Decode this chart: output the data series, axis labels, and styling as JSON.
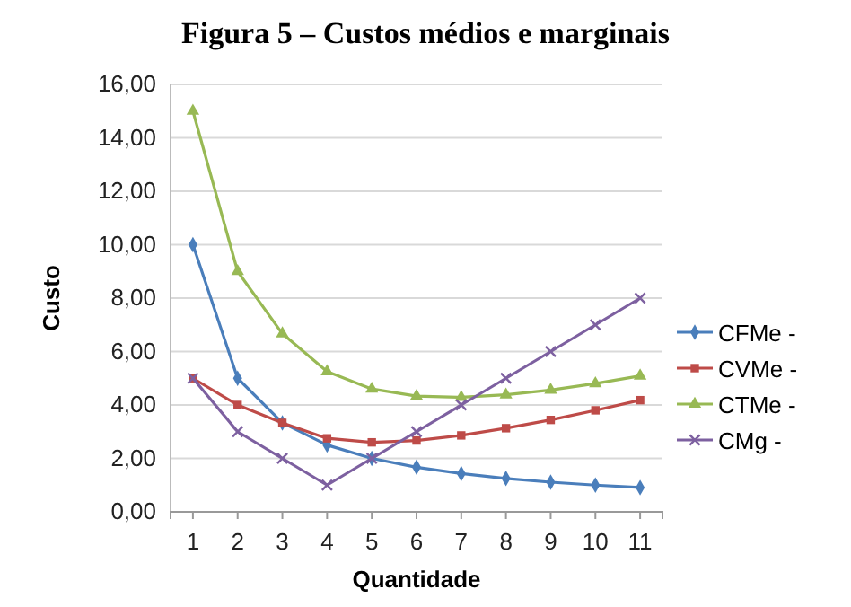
{
  "chart_data": {
    "type": "line",
    "title": "Figura 5 – Custos médios e marginais",
    "xlabel": "Quantidade",
    "ylabel": "Custo",
    "categories": [
      "1",
      "2",
      "3",
      "4",
      "5",
      "6",
      "7",
      "8",
      "9",
      "10",
      "11"
    ],
    "series": [
      {
        "name": "CFMe -",
        "color": "#4a7ebb",
        "marker": "diamond",
        "values": [
          10,
          5,
          3.33,
          2.5,
          2,
          1.67,
          1.43,
          1.25,
          1.11,
          1,
          0.91
        ]
      },
      {
        "name": "CVMe -",
        "color": "#be4b48",
        "marker": "square",
        "values": [
          5,
          4,
          3.33,
          2.75,
          2.6,
          2.67,
          2.86,
          3.13,
          3.44,
          3.8,
          4.18
        ]
      },
      {
        "name": "CTMe -",
        "color": "#98b954",
        "marker": "triangle",
        "values": [
          15,
          9,
          6.67,
          5.25,
          4.6,
          4.33,
          4.29,
          4.38,
          4.56,
          4.8,
          5.09
        ]
      },
      {
        "name": "CMg -",
        "color": "#7d60a0",
        "marker": "cross",
        "values": [
          5,
          3,
          2,
          1,
          2,
          3,
          4,
          5,
          6,
          7,
          8
        ]
      }
    ],
    "ylim": [
      0,
      16
    ],
    "yticks": [
      {
        "value": 0,
        "label": "0,00"
      },
      {
        "value": 2,
        "label": "2,00"
      },
      {
        "value": 4,
        "label": "4,00"
      },
      {
        "value": 6,
        "label": "6,00"
      },
      {
        "value": 8,
        "label": "8,00"
      },
      {
        "value": 10,
        "label": "10,00"
      },
      {
        "value": 12,
        "label": "12,00"
      },
      {
        "value": 14,
        "label": "14,00"
      },
      {
        "value": 16,
        "label": "16,00"
      }
    ],
    "grid": "y",
    "legend": "right",
    "line_style": "solid"
  }
}
